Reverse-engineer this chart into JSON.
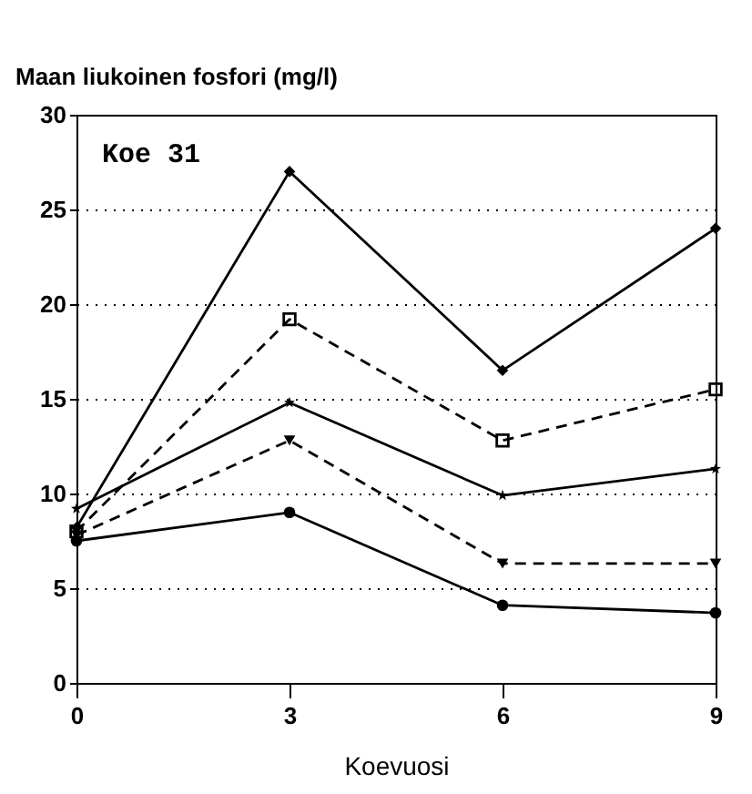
{
  "chart_data": {
    "type": "line",
    "xlabel": "Koevuosi",
    "ylabel": "Maan liukoinen fosfori (mg/l)",
    "annotations": [
      "Koe 31"
    ],
    "x": [
      0,
      3,
      6,
      9
    ],
    "xlim": [
      0,
      9
    ],
    "xticks": [
      0,
      3,
      6,
      9
    ],
    "ylim": [
      0,
      30
    ],
    "yticks": [
      0,
      5,
      10,
      15,
      20,
      25,
      30
    ],
    "grid": "y",
    "series": [
      {
        "color": "#000000",
        "marker": "diamond",
        "line_style": "solid",
        "values": [
          8.2,
          27,
          16.5,
          24
        ]
      },
      {
        "color": "#000000",
        "marker": "square",
        "line_style": "dashed",
        "values": [
          8,
          19.2,
          12.8,
          15.5
        ]
      },
      {
        "color": "#000000",
        "marker": "star",
        "line_style": "solid",
        "values": [
          9.2,
          14.8,
          9.9,
          11.3
        ]
      },
      {
        "color": "#000000",
        "marker": "triangle",
        "line_style": "dashed",
        "values": [
          7.8,
          12.8,
          6.3,
          6.3
        ]
      },
      {
        "color": "#000000",
        "marker": "circle",
        "line_style": "solid",
        "values": [
          7.5,
          9,
          4.1,
          3.7
        ]
      }
    ]
  }
}
